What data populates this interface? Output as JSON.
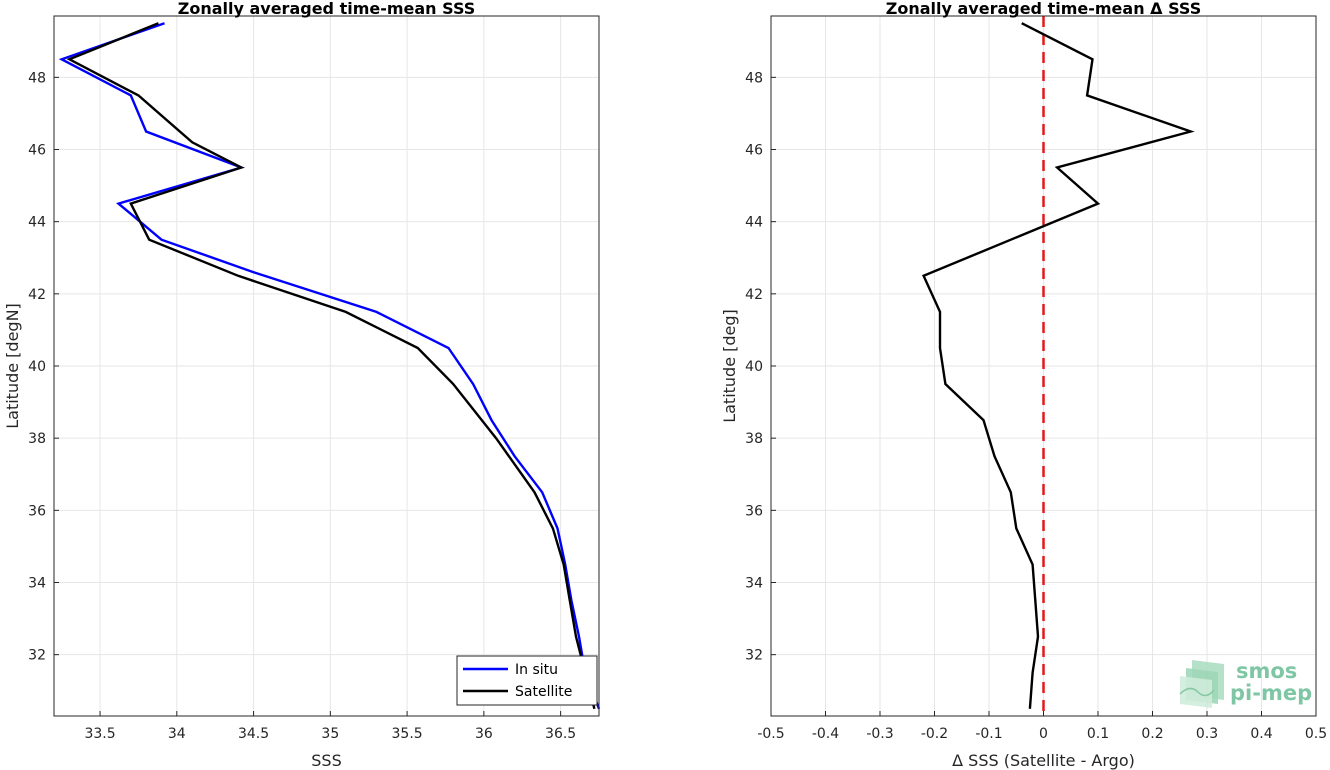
{
  "chart_data": [
    {
      "type": "line",
      "title": "Zonally averaged time-mean SSS",
      "xlabel": "SSS",
      "ylabel": "Latitude [degN]",
      "xlim": [
        33.2,
        36.75
      ],
      "ylim": [
        30.3,
        49.7
      ],
      "xticks": [
        "33.5",
        "34",
        "34.5",
        "35",
        "35.5",
        "36",
        "36.5"
      ],
      "xtick_values": [
        33.5,
        34,
        34.5,
        35,
        35.5,
        36,
        36.5
      ],
      "yticks": [
        "32",
        "34",
        "36",
        "38",
        "40",
        "42",
        "44",
        "46",
        "48"
      ],
      "ytick_values": [
        32,
        34,
        36,
        38,
        40,
        42,
        44,
        46,
        48
      ],
      "grid": true,
      "legend": {
        "position": "bottom-right",
        "entries": [
          "In situ",
          "Satellite"
        ]
      },
      "series": [
        {
          "name": "In situ",
          "color": "#0000ff",
          "points": [
            [
              33.92,
              49.5
            ],
            [
              33.25,
              48.5
            ],
            [
              33.7,
              47.5
            ],
            [
              33.8,
              46.5
            ],
            [
              34.42,
              45.5
            ],
            [
              33.62,
              44.5
            ],
            [
              33.9,
              43.5
            ],
            [
              34.5,
              42.6
            ],
            [
              35.3,
              41.5
            ],
            [
              35.77,
              40.5
            ],
            [
              35.93,
              39.5
            ],
            [
              36.05,
              38.5
            ],
            [
              36.2,
              37.5
            ],
            [
              36.38,
              36.5
            ],
            [
              36.48,
              35.5
            ],
            [
              36.53,
              34.5
            ],
            [
              36.57,
              33.5
            ],
            [
              36.62,
              32.5
            ],
            [
              36.66,
              31.5
            ],
            [
              36.75,
              30.5
            ]
          ]
        },
        {
          "name": "Satellite",
          "color": "#000000",
          "points": [
            [
              33.88,
              49.5
            ],
            [
              33.3,
              48.5
            ],
            [
              33.75,
              47.5
            ],
            [
              34.1,
              46.2
            ],
            [
              34.42,
              45.5
            ],
            [
              33.7,
              44.5
            ],
            [
              33.82,
              43.5
            ],
            [
              34.4,
              42.5
            ],
            [
              35.1,
              41.5
            ],
            [
              35.57,
              40.5
            ],
            [
              35.8,
              39.5
            ],
            [
              36.08,
              38.0
            ],
            [
              36.33,
              36.5
            ],
            [
              36.45,
              35.5
            ],
            [
              36.52,
              34.5
            ],
            [
              36.56,
              33.5
            ],
            [
              36.6,
              32.5
            ],
            [
              36.66,
              31.5
            ],
            [
              36.72,
              30.5
            ]
          ]
        }
      ]
    },
    {
      "type": "line",
      "title": "Zonally averaged time-mean Δ SSS",
      "xlabel": "Δ SSS (Satellite - Argo)",
      "ylabel": "Latitude [deg]",
      "xlim": [
        -0.5,
        0.5
      ],
      "ylim": [
        30.3,
        49.7
      ],
      "xticks": [
        "-0.5",
        "-0.4",
        "-0.3",
        "-0.2",
        "-0.1",
        "0",
        "0.1",
        "0.2",
        "0.3",
        "0.4",
        "0.5"
      ],
      "xtick_values": [
        -0.5,
        -0.4,
        -0.3,
        -0.2,
        -0.1,
        0,
        0.1,
        0.2,
        0.3,
        0.4,
        0.5
      ],
      "yticks": [
        "32",
        "34",
        "36",
        "38",
        "40",
        "42",
        "44",
        "46",
        "48"
      ],
      "ytick_values": [
        32,
        34,
        36,
        38,
        40,
        42,
        44,
        46,
        48
      ],
      "grid": true,
      "reference_line": {
        "x": 0,
        "color": "#e31a1c",
        "style": "dashed"
      },
      "series": [
        {
          "color": "#000000",
          "points": [
            [
              -0.04,
              49.5
            ],
            [
              0.09,
              48.5
            ],
            [
              0.08,
              47.5
            ],
            [
              0.27,
              46.5
            ],
            [
              0.025,
              45.5
            ],
            [
              0.1,
              44.5
            ],
            [
              -0.22,
              42.5
            ],
            [
              -0.19,
              41.5
            ],
            [
              -0.19,
              40.5
            ],
            [
              -0.18,
              39.5
            ],
            [
              -0.11,
              38.5
            ],
            [
              -0.09,
              37.5
            ],
            [
              -0.06,
              36.5
            ],
            [
              -0.05,
              35.5
            ],
            [
              -0.02,
              34.5
            ],
            [
              -0.015,
              33.5
            ],
            [
              -0.01,
              32.5
            ],
            [
              -0.02,
              31.5
            ],
            [
              -0.025,
              30.5
            ]
          ]
        }
      ]
    }
  ],
  "logo": {
    "line1": "smos",
    "line2": "pi-mep"
  }
}
